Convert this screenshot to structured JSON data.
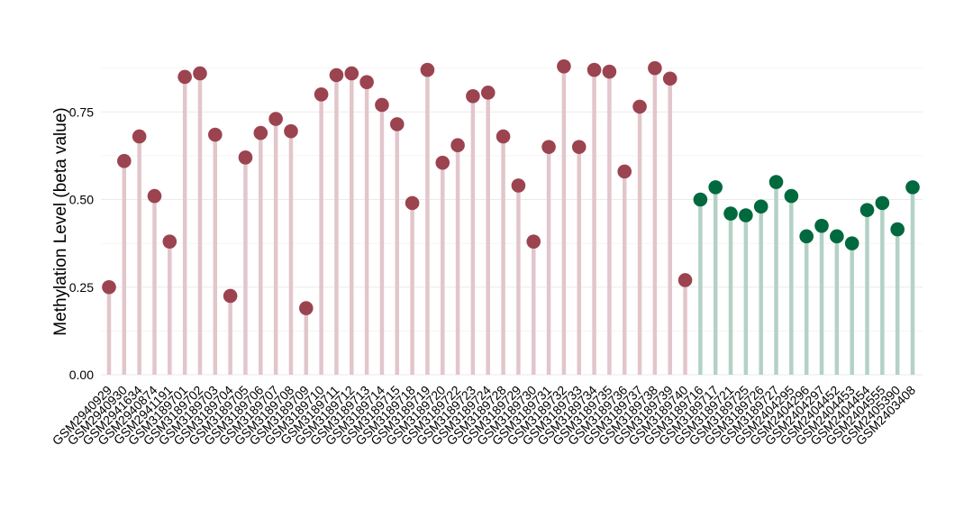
{
  "chart_data": {
    "type": "lollipop",
    "title": "",
    "xlabel": "",
    "ylabel": "Methylation Level (beta value)",
    "ylim": [
      0,
      1.0
    ],
    "yticks": [
      "0.00",
      "0.25",
      "0.50",
      "0.75"
    ],
    "grid": true,
    "legend": "none",
    "categories": [
      "GSM2940929",
      "GSM2940930",
      "GSM2941634",
      "GSM2940874",
      "GSM2941191",
      "GSM3189701",
      "GSM3189702",
      "GSM3189703",
      "GSM3189704",
      "GSM3189705",
      "GSM3189706",
      "GSM3189707",
      "GSM3189708",
      "GSM3189709",
      "GSM3189710",
      "GSM3189711",
      "GSM3189712",
      "GSM3189713",
      "GSM3189714",
      "GSM3189715",
      "GSM3189718",
      "GSM3189719",
      "GSM3189720",
      "GSM3189722",
      "GSM3189723",
      "GSM3189724",
      "GSM3189728",
      "GSM3189729",
      "GSM3189730",
      "GSM3189731",
      "GSM3189732",
      "GSM3189733",
      "GSM3189734",
      "GSM3189735",
      "GSM3189736",
      "GSM3189737",
      "GSM3189738",
      "GSM3189739",
      "GSM3189740",
      "GSM3189716",
      "GSM3189717",
      "GSM3189721",
      "GSM3189725",
      "GSM3189726",
      "GSM3189727",
      "GSM2404295",
      "GSM2404296",
      "GSM2404297",
      "GSM2404452",
      "GSM2404453",
      "GSM2404454",
      "GSM2404555",
      "GSM2405390",
      "GSM2403408"
    ],
    "values": [
      0.25,
      0.61,
      0.68,
      0.51,
      0.38,
      0.85,
      0.86,
      0.685,
      0.225,
      0.62,
      0.69,
      0.73,
      0.695,
      0.19,
      0.8,
      0.855,
      0.86,
      0.835,
      0.77,
      0.715,
      0.49,
      0.87,
      0.605,
      0.655,
      0.795,
      0.805,
      0.68,
      0.54,
      0.38,
      0.65,
      0.88,
      0.65,
      0.87,
      0.865,
      0.58,
      0.765,
      0.875,
      0.845,
      0.27,
      0.5,
      0.535,
      0.46,
      0.455,
      0.48,
      0.55,
      0.51,
      0.395,
      0.425,
      0.395,
      0.375,
      0.47,
      0.49,
      0.415,
      0.535
    ],
    "groups": [
      "a",
      "a",
      "a",
      "a",
      "a",
      "a",
      "a",
      "a",
      "a",
      "a",
      "a",
      "a",
      "a",
      "a",
      "a",
      "a",
      "a",
      "a",
      "a",
      "a",
      "a",
      "a",
      "a",
      "a",
      "a",
      "a",
      "a",
      "a",
      "a",
      "a",
      "a",
      "a",
      "a",
      "a",
      "a",
      "a",
      "a",
      "a",
      "a",
      "b",
      "b",
      "b",
      "b",
      "b",
      "b",
      "b",
      "b",
      "b",
      "b",
      "b",
      "b",
      "b",
      "b",
      "b"
    ],
    "colors": {
      "a": {
        "point": "#9c4350",
        "stem": "#e2c6cb"
      },
      "b": {
        "point": "#00693e",
        "stem": "#b3d2c5"
      },
      "grid": "#ebebeb"
    }
  }
}
